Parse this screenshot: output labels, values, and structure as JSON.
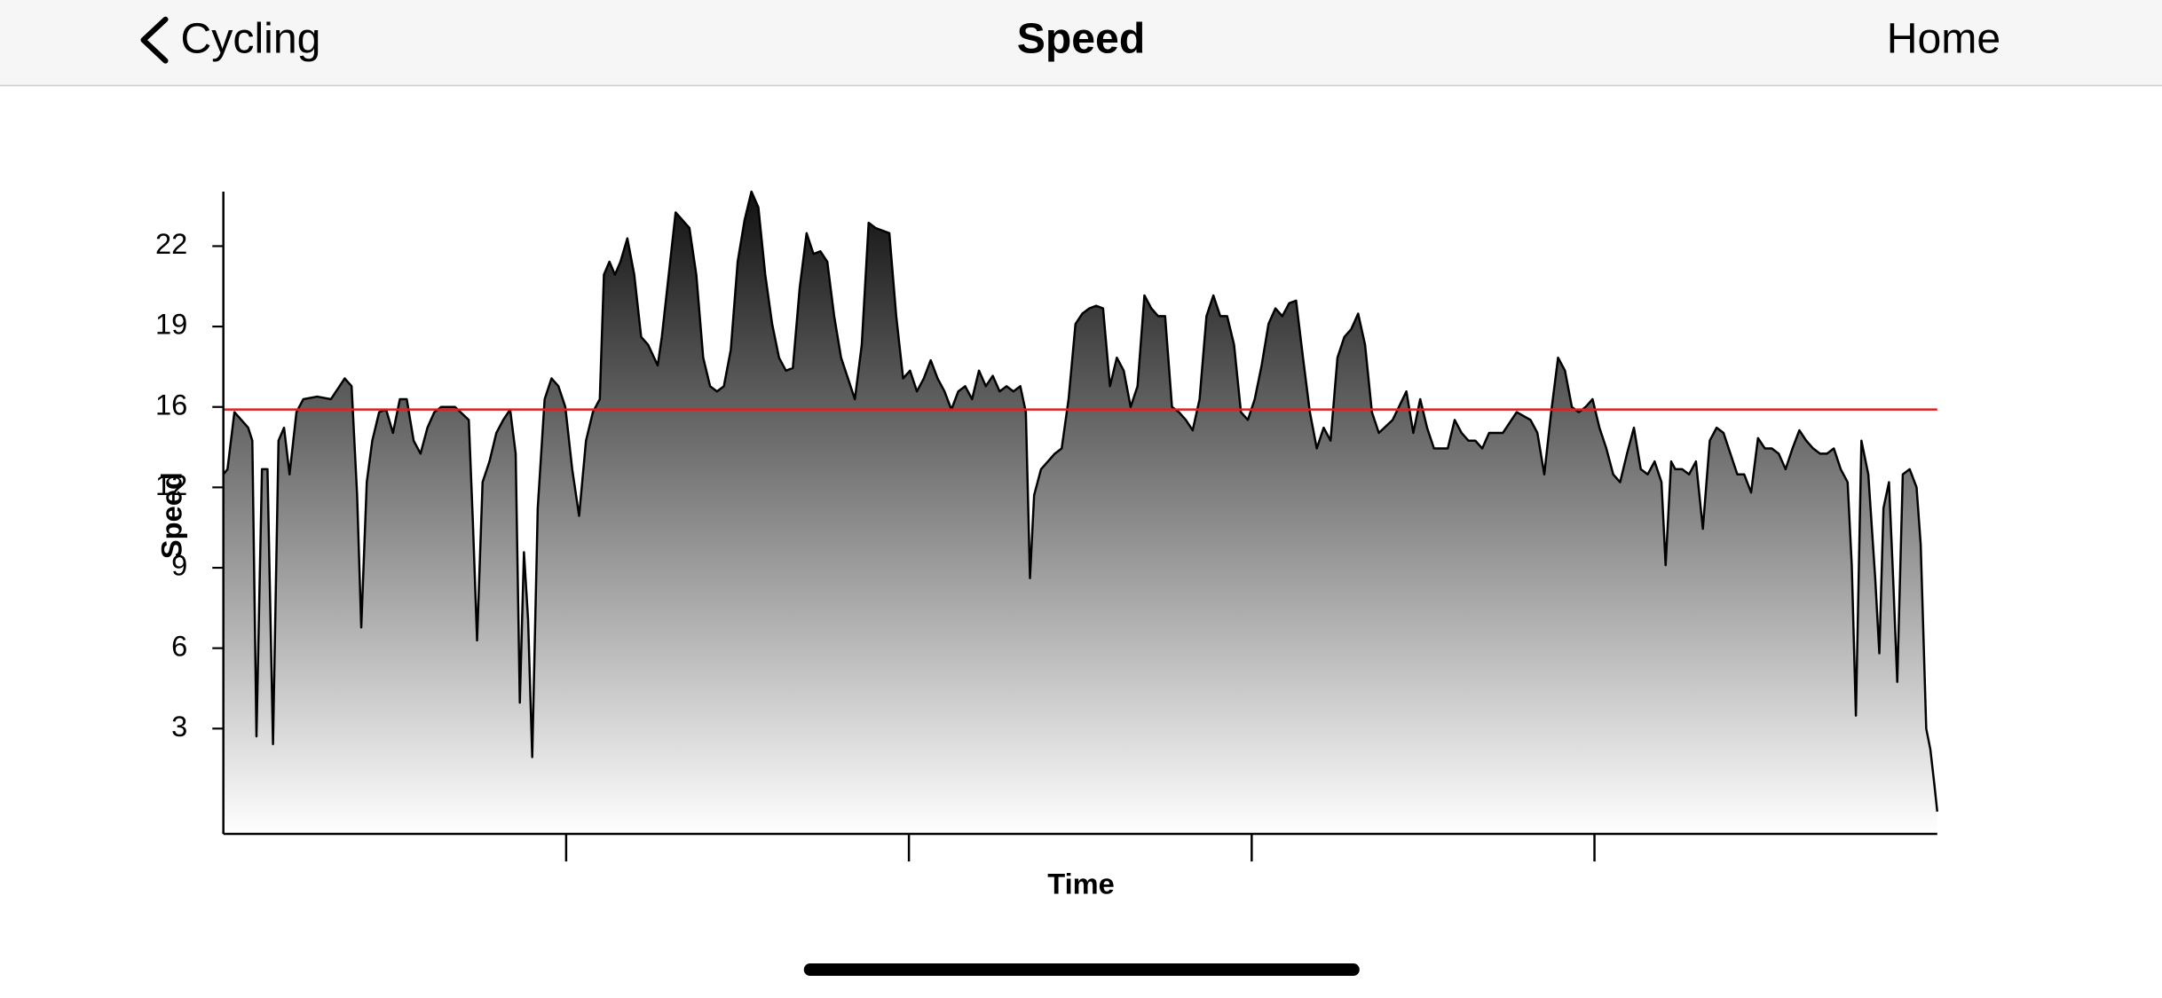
{
  "nav": {
    "back": "Cycling",
    "title": "Speed",
    "right": "Home"
  },
  "chart_data": {
    "type": "area",
    "x_label": "Time",
    "y_label": "Speed",
    "color": "#000000",
    "fill_gradient": [
      "#111111",
      "#ffffff"
    ],
    "reference_line": {
      "value": 15.4,
      "color": "#e02020"
    },
    "xlim": [
      0,
      1243
    ],
    "xticks": [
      248.6,
      497.2,
      745.8,
      994.4
    ],
    "ylim": [
      -0.96,
      23.8
    ],
    "yticks": [
      {
        "value": 3.1,
        "label": "3"
      },
      {
        "value": 6.2,
        "label": "6"
      },
      {
        "value": 9.3,
        "label": "9"
      },
      {
        "value": 12.4,
        "label": "12"
      },
      {
        "value": 15.5,
        "label": "16"
      },
      {
        "value": 18.6,
        "label": "19"
      },
      {
        "value": 21.7,
        "label": "22"
      }
    ],
    "x": [
      0,
      3,
      8,
      13,
      18,
      21,
      24,
      28,
      32,
      36,
      40,
      44,
      48,
      53,
      58,
      68,
      78,
      88,
      93,
      97,
      100,
      104,
      108,
      113,
      118,
      123,
      128,
      133,
      138,
      143,
      148,
      153,
      158,
      168,
      178,
      181,
      184,
      188,
      193,
      198,
      203,
      208,
      212,
      215,
      218,
      221,
      224,
      228,
      233,
      238,
      243,
      248,
      253,
      258,
      263,
      268,
      273,
      276,
      280,
      284,
      288,
      293,
      298,
      303,
      308,
      315,
      318,
      323,
      328,
      333,
      338,
      343,
      348,
      353,
      358,
      363,
      368,
      373,
      378,
      383,
      388,
      393,
      398,
      403,
      408,
      413,
      418,
      423,
      428,
      433,
      438,
      443,
      448,
      453,
      458,
      463,
      468,
      473,
      483,
      488,
      493,
      498,
      503,
      508,
      513,
      518,
      523,
      528,
      533,
      538,
      543,
      548,
      553,
      558,
      563,
      568,
      573,
      578,
      582,
      585,
      588,
      593,
      598,
      603,
      608,
      613,
      618,
      623,
      628,
      633,
      638,
      643,
      648,
      653,
      658,
      663,
      668,
      673,
      678,
      683,
      688,
      693,
      698,
      703,
      708,
      713,
      718,
      723,
      728,
      733,
      738,
      743,
      748,
      753,
      758,
      763,
      768,
      773,
      778,
      783,
      788,
      793,
      798,
      803,
      808,
      813,
      818,
      823,
      828,
      833,
      838,
      848,
      858,
      863,
      868,
      873,
      878,
      888,
      893,
      898,
      903,
      908,
      913,
      918,
      928,
      938,
      948,
      953,
      958,
      963,
      968,
      973,
      978,
      983,
      988,
      993,
      998,
      1003,
      1008,
      1013,
      1018,
      1023,
      1028,
      1033,
      1038,
      1043,
      1046,
      1050,
      1053,
      1058,
      1063,
      1068,
      1073,
      1078,
      1083,
      1088,
      1093,
      1098,
      1103,
      1108,
      1113,
      1118,
      1123,
      1128,
      1133,
      1138,
      1143,
      1148,
      1153,
      1158,
      1163,
      1168,
      1173,
      1178,
      1181,
      1184,
      1188,
      1193,
      1198,
      1201,
      1204,
      1208,
      1211,
      1214,
      1218,
      1223,
      1228,
      1231,
      1235,
      1238,
      1241,
      1243
    ],
    "values": [
      12.9,
      13.1,
      15.3,
      15.0,
      14.7,
      14.2,
      2.8,
      13.1,
      13.1,
      2.5,
      14.2,
      14.7,
      12.9,
      15.3,
      15.8,
      15.9,
      15.8,
      16.6,
      16.3,
      12.1,
      7.0,
      12.6,
      14.2,
      15.3,
      15.4,
      14.5,
      15.8,
      15.8,
      14.2,
      13.7,
      14.7,
      15.3,
      15.5,
      15.5,
      15.0,
      11.0,
      6.5,
      12.6,
      13.4,
      14.5,
      15.0,
      15.4,
      13.7,
      4.1,
      9.9,
      7.3,
      2.0,
      11.6,
      15.8,
      16.6,
      16.3,
      15.5,
      13.1,
      11.3,
      14.2,
      15.3,
      15.8,
      20.6,
      21.1,
      20.6,
      21.1,
      22.0,
      20.6,
      18.2,
      17.9,
      17.1,
      18.2,
      20.6,
      23.0,
      22.7,
      22.4,
      20.6,
      17.4,
      16.3,
      16.1,
      16.3,
      17.7,
      21.1,
      22.7,
      23.8,
      23.2,
      20.6,
      18.7,
      17.4,
      16.9,
      17.0,
      20.1,
      22.2,
      21.4,
      21.5,
      21.1,
      19.0,
      17.4,
      16.6,
      15.8,
      17.9,
      22.6,
      22.4,
      22.2,
      19.0,
      16.6,
      16.9,
      16.1,
      16.6,
      17.3,
      16.6,
      16.1,
      15.4,
      16.1,
      16.3,
      15.8,
      16.9,
      16.3,
      16.7,
      16.1,
      16.3,
      16.1,
      16.3,
      15.3,
      8.9,
      12.1,
      13.1,
      13.4,
      13.7,
      13.9,
      15.8,
      18.7,
      19.1,
      19.3,
      19.4,
      19.3,
      16.3,
      17.4,
      16.9,
      15.5,
      16.3,
      19.8,
      19.3,
      19.0,
      19.0,
      15.5,
      15.3,
      15.0,
      14.6,
      15.8,
      19.0,
      19.8,
      19.0,
      19.0,
      17.9,
      15.3,
      15.0,
      15.8,
      17.1,
      18.7,
      19.3,
      19.0,
      19.5,
      19.6,
      17.4,
      15.3,
      13.9,
      14.7,
      14.2,
      17.4,
      18.2,
      18.5,
      19.1,
      17.9,
      15.3,
      14.5,
      15.0,
      16.1,
      14.5,
      15.8,
      14.7,
      13.9,
      13.9,
      15.0,
      14.5,
      14.2,
      14.2,
      13.9,
      14.5,
      14.5,
      15.3,
      15.0,
      14.5,
      12.9,
      15.3,
      17.4,
      16.9,
      15.5,
      15.3,
      15.5,
      15.8,
      14.7,
      13.9,
      12.9,
      12.6,
      13.7,
      14.7,
      13.1,
      12.9,
      13.4,
      12.6,
      9.4,
      13.4,
      13.1,
      13.1,
      12.9,
      13.4,
      10.8,
      14.2,
      14.7,
      14.5,
      13.7,
      12.9,
      12.9,
      12.2,
      14.3,
      13.9,
      13.9,
      13.7,
      13.1,
      13.9,
      14.6,
      14.2,
      13.9,
      13.7,
      13.7,
      13.9,
      13.1,
      12.6,
      9.4,
      3.6,
      14.2,
      12.9,
      8.9,
      6.0,
      11.6,
      12.6,
      8.9,
      4.9,
      12.9,
      13.1,
      12.4,
      10.2,
      3.1,
      2.3,
      0.9,
      -0.1
    ]
  }
}
